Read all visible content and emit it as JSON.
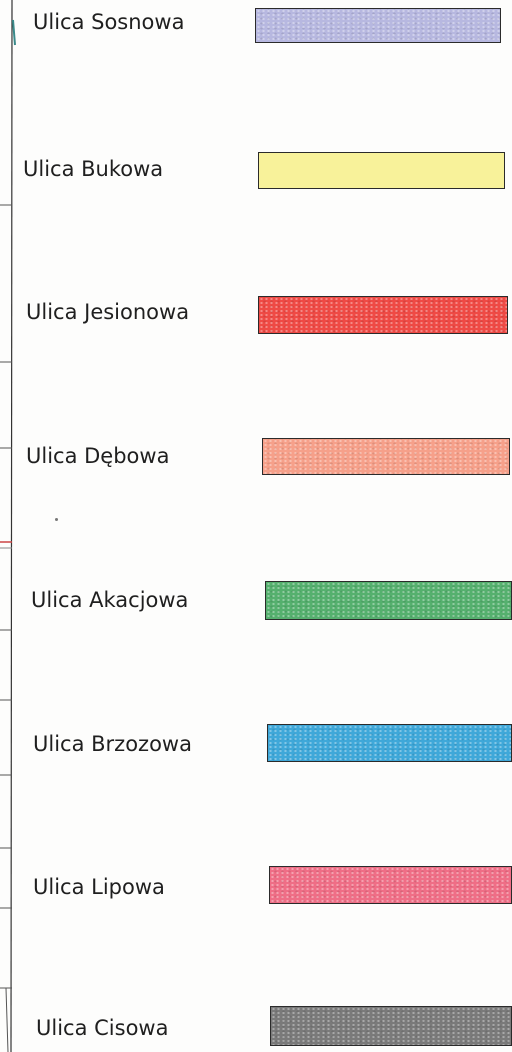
{
  "legend": {
    "items": [
      {
        "label": "Ulica Sosnowa",
        "color": "#b7b8e0"
      },
      {
        "label": "Ulica Bukowa",
        "color": "#f8f29a"
      },
      {
        "label": "Ulica Jesionowa",
        "color": "#ef4a45"
      },
      {
        "label": "Ulica Dębowa",
        "color": "#f6a08a"
      },
      {
        "label": "Ulica Akacjowa",
        "color": "#55b06e"
      },
      {
        "label": "Ulica Brzozowa",
        "color": "#3fa8d9"
      },
      {
        "label": "Ulica Lipowa",
        "color": "#ef6e86"
      },
      {
        "label": "Ulica Cisowa",
        "color": "#7a7a7a"
      }
    ]
  }
}
